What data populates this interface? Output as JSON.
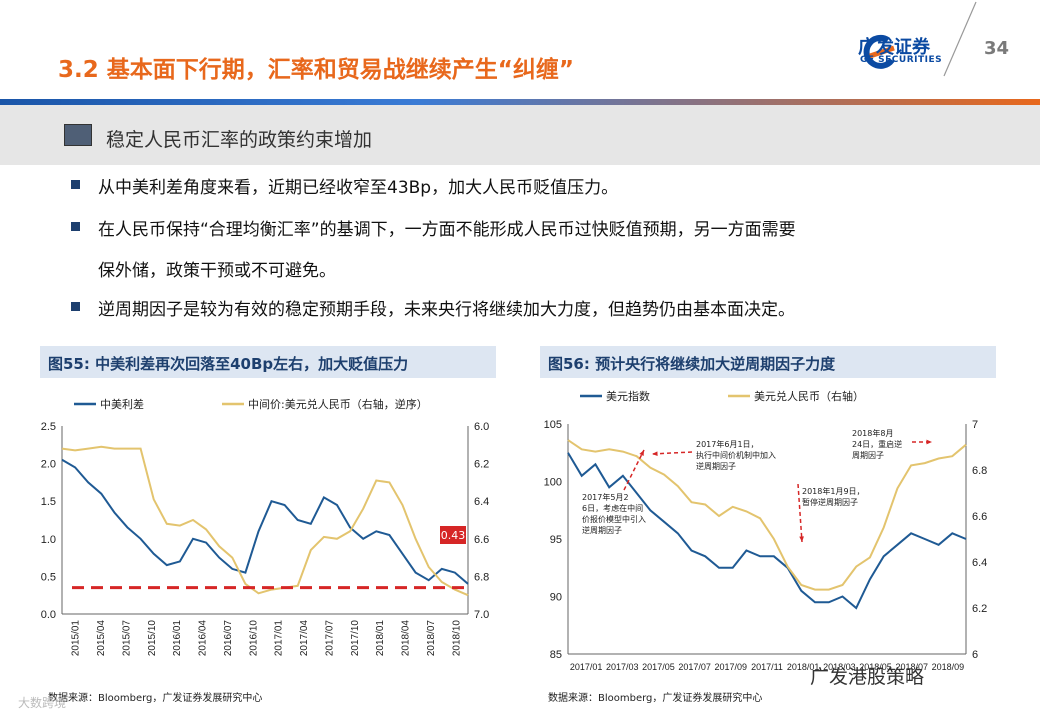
{
  "header": {
    "title": "3.2 基本面下行期，汇率和贸易战继续产生“纠缠”",
    "logo_cn": "广发证券",
    "logo_en": "GF SECURITIES",
    "page_number": "34"
  },
  "section": {
    "heading": "稳定人民币汇率的政策约束增加",
    "bullets": [
      {
        "line1": "从中美利差角度来看，近期已经收窄至43Bp，加大人民币贬值压力。",
        "line2": ""
      },
      {
        "line1": "在人民币保持“合理均衡汇率”的基调下，一方面不能形成人民币过快贬值预期，另一方面需要",
        "line2": "保外储，政策干预或不可避免。"
      },
      {
        "line1": "逆周期因子是较为有效的稳定预期手段，未来央行将继续加大力度，但趋势仍由基本面决定。",
        "line2": ""
      }
    ]
  },
  "colors": {
    "accent_orange": "#e8681c",
    "navy": "#1d3f6e",
    "series_blue": "#1f5a94",
    "series_gold": "#e3c46e",
    "dash_red": "#d62626"
  },
  "chart_data": [
    {
      "type": "line",
      "title": "图55:  中美利差再次回落至40Bp左右，加大贬值压力",
      "legend": [
        "中美利差",
        "中间价:美元兑人民币（右轴，逆序）"
      ],
      "legend_placement": "top",
      "x_ticks": [
        "2015/01",
        "2015/04",
        "2015/07",
        "2015/10",
        "2016/01",
        "2016/04",
        "2016/07",
        "2016/10",
        "2017/01",
        "2017/04",
        "2017/07",
        "2017/10",
        "2018/01",
        "2018/04",
        "2018/07",
        "2018/10"
      ],
      "y_left_ticks": [
        "2.5",
        "2.0",
        "1.5",
        "1.0",
        "0.5",
        "0.0"
      ],
      "ylim_left": [
        0,
        2.5
      ],
      "y_right_ticks": [
        "6.0",
        "6.2",
        "6.4",
        "6.6",
        "6.8",
        "7.0"
      ],
      "ylim_right": [
        6.0,
        7.0
      ],
      "right_axis_inverted": true,
      "annotation": "0.43",
      "reference_line": 0.35,
      "series": [
        {
          "name": "中美利差",
          "axis": "left",
          "values": [
            2.05,
            1.95,
            1.75,
            1.6,
            1.35,
            1.15,
            1.0,
            0.8,
            0.65,
            0.7,
            1.0,
            0.95,
            0.75,
            0.6,
            0.55,
            1.1,
            1.5,
            1.45,
            1.25,
            1.2,
            1.55,
            1.45,
            1.15,
            1.0,
            1.1,
            1.05,
            0.8,
            0.55,
            0.45,
            0.6,
            0.55,
            0.4
          ]
        },
        {
          "name": "中间价:美元兑人民币（右轴，逆序）",
          "axis": "right",
          "values": [
            6.12,
            6.13,
            6.12,
            6.11,
            6.12,
            6.12,
            6.12,
            6.39,
            6.52,
            6.53,
            6.5,
            6.55,
            6.64,
            6.7,
            6.84,
            6.89,
            6.87,
            6.86,
            6.85,
            6.66,
            6.59,
            6.6,
            6.56,
            6.44,
            6.29,
            6.3,
            6.42,
            6.6,
            6.75,
            6.83,
            6.87,
            6.9
          ]
        }
      ]
    },
    {
      "type": "line",
      "title": "图56:  预计央行将继续加大逆周期因子力度",
      "legend": [
        "美元指数",
        "美元兑人民币（右轴）"
      ],
      "legend_placement": "top",
      "x_ticks": [
        "2017/01",
        "2017/03",
        "2017/05",
        "2017/07",
        "2017/09",
        "2017/11",
        "2018/01",
        "2018/03",
        "2018/05",
        "2018/07",
        "2018/09"
      ],
      "y_left_ticks": [
        "105",
        "100",
        "95",
        "90",
        "85"
      ],
      "ylim_left": [
        85,
        105
      ],
      "y_right_ticks": [
        "7",
        "6.8",
        "6.6",
        "6.4",
        "6.2",
        "6"
      ],
      "ylim_right": [
        6.0,
        7.0
      ],
      "annotations": [
        "2017年5月26日，考虑在中间价报价模型中引入逆周期因子",
        "2017年6月1日，执行中间价机制中加入逆周期因子",
        "2018年1月9日，暂停逆周期因子",
        "2018年8月24日，重启逆周期因子"
      ],
      "series": [
        {
          "name": "美元指数",
          "axis": "left",
          "values": [
            102.5,
            100.5,
            101.5,
            99.5,
            100.5,
            99.0,
            97.5,
            96.5,
            95.5,
            94.0,
            93.5,
            92.5,
            92.5,
            94.0,
            93.5,
            93.5,
            92.5,
            90.5,
            89.5,
            89.5,
            90.0,
            89.0,
            91.5,
            93.5,
            94.5,
            95.5,
            95.0,
            94.5,
            95.5,
            95.0
          ]
        },
        {
          "name": "美元兑人民币（右轴）",
          "axis": "right",
          "values": [
            6.93,
            6.89,
            6.88,
            6.89,
            6.88,
            6.86,
            6.81,
            6.78,
            6.73,
            6.66,
            6.65,
            6.6,
            6.64,
            6.62,
            6.59,
            6.5,
            6.38,
            6.3,
            6.28,
            6.28,
            6.3,
            6.38,
            6.42,
            6.55,
            6.72,
            6.82,
            6.83,
            6.85,
            6.86,
            6.91
          ]
        }
      ]
    }
  ],
  "footer": {
    "source_left": "数据来源：Bloomberg，广发证券发展研究中心",
    "source_right": "数据来源：Bloomberg，广发证券发展研究中心",
    "watermark": "广发港股策略",
    "watermark2": "大数跨境"
  }
}
